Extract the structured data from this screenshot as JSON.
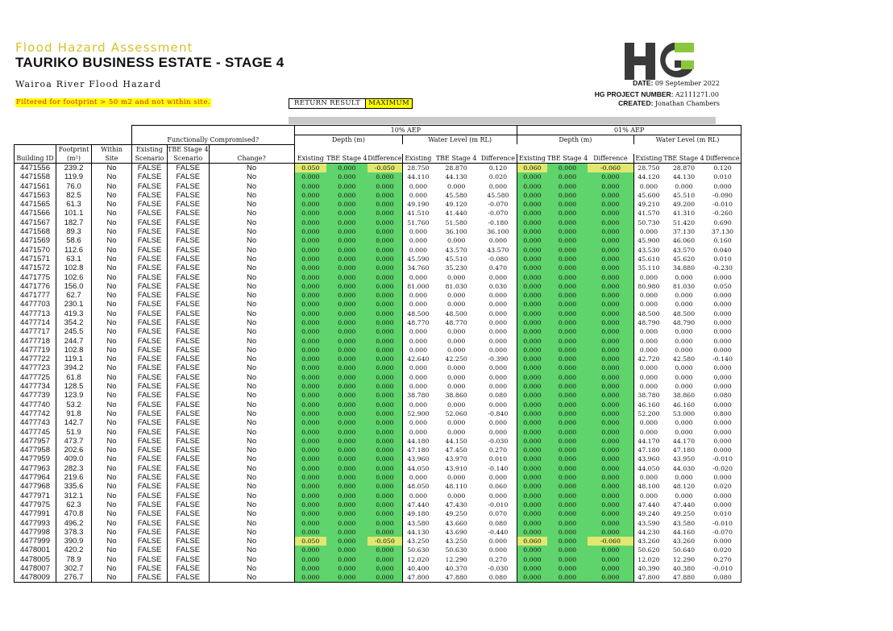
{
  "header": {
    "subtitle": "Flood Hazard Assessment",
    "title": "TAURIKO BUSINESS ESTATE - STAGE 4",
    "area": "Wairoa River Flood Hazard",
    "filter_note": "Filtered for footprint > 50 m2 and not within site.",
    "return_result_label": "RETURN RESULT",
    "return_result_value": "MAXIMUM",
    "date_label": "DATE:",
    "date_value": "09 September 2022",
    "project_label": "HG PROJECT NUMBER:",
    "project_value": "A2111271.00",
    "created_label": "CREATED:",
    "created_value": "Jonathan Chambers",
    "logo_letters": "HG",
    "logo_colors": {
      "dark": "#3a3a3a",
      "accent": "#8cc63f"
    }
  },
  "table": {
    "group_headers": {
      "functionally": "Functionally Compromised?",
      "aep10": "10% AEP",
      "aep01": "01% AEP",
      "depth": "Depth (m)",
      "wl": "Water Level (m RL)"
    },
    "col_headers": {
      "building_id": "Building ID",
      "footprint_1": "Footprint",
      "footprint_2": "(m²)",
      "within_1": "Within",
      "within_2": "Site",
      "existing_1": "Existing",
      "existing_2": "Scenario",
      "tbe_1": "TBE Stage 4",
      "tbe_2": "Scenario",
      "change": "Change?",
      "existing": "Existing",
      "tbe": "TBE Stage 4",
      "difference": "Difference"
    },
    "colors": {
      "green": "#5fd36c",
      "yellow": "#e1e870"
    },
    "rows": [
      [
        "4471556",
        "239.2",
        "No",
        "FALSE",
        "FALSE",
        "No",
        "0.050",
        "0.000",
        "-0.050",
        "28.750",
        "28.870",
        "0.120",
        "0.060",
        "0.000",
        "-0.060",
        "28.750",
        "28.870",
        "0.120"
      ],
      [
        "4471558",
        "119.9",
        "No",
        "FALSE",
        "FALSE",
        "No",
        "0.000",
        "0.000",
        "0.000",
        "44.110",
        "44.130",
        "0.020",
        "0.000",
        "0.000",
        "0.000",
        "44.120",
        "44.130",
        "0.010"
      ],
      [
        "4471561",
        "76.0",
        "No",
        "FALSE",
        "FALSE",
        "No",
        "0.000",
        "0.000",
        "0.000",
        "0.000",
        "0.000",
        "0.000",
        "0.000",
        "0.000",
        "0.000",
        "0.000",
        "0.000",
        "0.000"
      ],
      [
        "4471563",
        "82.5",
        "No",
        "FALSE",
        "FALSE",
        "No",
        "0.000",
        "0.000",
        "0.000",
        "0.000",
        "45.580",
        "45.580",
        "0.000",
        "0.000",
        "0.000",
        "45.600",
        "45.510",
        "-0.090"
      ],
      [
        "4471565",
        "61.3",
        "No",
        "FALSE",
        "FALSE",
        "No",
        "0.000",
        "0.000",
        "0.000",
        "49.190",
        "49.120",
        "-0.070",
        "0.000",
        "0.000",
        "0.000",
        "49.210",
        "49.200",
        "-0.010"
      ],
      [
        "4471566",
        "101.1",
        "No",
        "FALSE",
        "FALSE",
        "No",
        "0.000",
        "0.000",
        "0.000",
        "41.510",
        "41.440",
        "-0.070",
        "0.000",
        "0.000",
        "0.000",
        "41.570",
        "41.310",
        "-0.260"
      ],
      [
        "4471567",
        "182.7",
        "No",
        "FALSE",
        "FALSE",
        "No",
        "0.000",
        "0.000",
        "0.000",
        "51.760",
        "51.580",
        "-0.180",
        "0.000",
        "0.000",
        "0.000",
        "50.730",
        "51.420",
        "0.690"
      ],
      [
        "4471568",
        "89.3",
        "No",
        "FALSE",
        "FALSE",
        "No",
        "0.000",
        "0.000",
        "0.000",
        "0.000",
        "36.100",
        "36.100",
        "0.000",
        "0.000",
        "0.000",
        "0.000",
        "37.130",
        "37.130"
      ],
      [
        "4471569",
        "58.6",
        "No",
        "FALSE",
        "FALSE",
        "No",
        "0.000",
        "0.000",
        "0.000",
        "0.000",
        "0.000",
        "0.000",
        "0.000",
        "0.000",
        "0.000",
        "45.900",
        "46.060",
        "0.160"
      ],
      [
        "4471570",
        "112.6",
        "No",
        "FALSE",
        "FALSE",
        "No",
        "0.000",
        "0.000",
        "0.000",
        "0.000",
        "43.570",
        "43.570",
        "0.000",
        "0.000",
        "0.000",
        "43.530",
        "43.570",
        "0.040"
      ],
      [
        "4471571",
        "63.1",
        "No",
        "FALSE",
        "FALSE",
        "No",
        "0.000",
        "0.000",
        "0.000",
        "45.590",
        "45.510",
        "-0.080",
        "0.000",
        "0.000",
        "0.000",
        "45.610",
        "45.620",
        "0.010"
      ],
      [
        "4471572",
        "102.8",
        "No",
        "FALSE",
        "FALSE",
        "No",
        "0.000",
        "0.000",
        "0.000",
        "34.760",
        "35.230",
        "0.470",
        "0.000",
        "0.000",
        "0.000",
        "35.110",
        "34.880",
        "-0.230"
      ],
      [
        "4471775",
        "102.6",
        "No",
        "FALSE",
        "FALSE",
        "No",
        "0.000",
        "0.000",
        "0.000",
        "0.000",
        "0.000",
        "0.000",
        "0.000",
        "0.000",
        "0.000",
        "0.000",
        "0.000",
        "0.000"
      ],
      [
        "4471776",
        "156.0",
        "No",
        "FALSE",
        "FALSE",
        "No",
        "0.000",
        "0.000",
        "0.000",
        "81.000",
        "81.030",
        "0.030",
        "0.000",
        "0.000",
        "0.000",
        "80.980",
        "81.030",
        "0.050"
      ],
      [
        "4471777",
        "62.7",
        "No",
        "FALSE",
        "FALSE",
        "No",
        "0.000",
        "0.000",
        "0.000",
        "0.000",
        "0.000",
        "0.000",
        "0.000",
        "0.000",
        "0.000",
        "0.000",
        "0.000",
        "0.000"
      ],
      [
        "4477703",
        "230.1",
        "No",
        "FALSE",
        "FALSE",
        "No",
        "0.000",
        "0.000",
        "0.000",
        "0.000",
        "0.000",
        "0.000",
        "0.000",
        "0.000",
        "0.000",
        "0.000",
        "0.000",
        "0.000"
      ],
      [
        "4477713",
        "419.3",
        "No",
        "FALSE",
        "FALSE",
        "No",
        "0.000",
        "0.000",
        "0.000",
        "48.500",
        "48.500",
        "0.000",
        "0.000",
        "0.000",
        "0.000",
        "48.500",
        "48.500",
        "0.000"
      ],
      [
        "4477714",
        "354.2",
        "No",
        "FALSE",
        "FALSE",
        "No",
        "0.000",
        "0.000",
        "0.000",
        "48.770",
        "48.770",
        "0.000",
        "0.000",
        "0.000",
        "0.000",
        "48.790",
        "48.790",
        "0.000"
      ],
      [
        "4477717",
        "245.5",
        "No",
        "FALSE",
        "FALSE",
        "No",
        "0.000",
        "0.000",
        "0.000",
        "0.000",
        "0.000",
        "0.000",
        "0.000",
        "0.000",
        "0.000",
        "0.000",
        "0.000",
        "0.000"
      ],
      [
        "4477718",
        "244.7",
        "No",
        "FALSE",
        "FALSE",
        "No",
        "0.000",
        "0.000",
        "0.000",
        "0.000",
        "0.000",
        "0.000",
        "0.000",
        "0.000",
        "0.000",
        "0.000",
        "0.000",
        "0.000"
      ],
      [
        "4477719",
        "102.8",
        "No",
        "FALSE",
        "FALSE",
        "No",
        "0.000",
        "0.000",
        "0.000",
        "0.000",
        "0.000",
        "0.000",
        "0.000",
        "0.000",
        "0.000",
        "0.000",
        "0.000",
        "0.000"
      ],
      [
        "4477722",
        "119.1",
        "No",
        "FALSE",
        "FALSE",
        "No",
        "0.000",
        "0.000",
        "0.000",
        "42.640",
        "42.250",
        "-0.390",
        "0.000",
        "0.000",
        "0.000",
        "42.720",
        "42.580",
        "-0.140"
      ],
      [
        "4477723",
        "394.2",
        "No",
        "FALSE",
        "FALSE",
        "No",
        "0.000",
        "0.000",
        "0.000",
        "0.000",
        "0.000",
        "0.000",
        "0.000",
        "0.000",
        "0.000",
        "0.000",
        "0.000",
        "0.000"
      ],
      [
        "4477725",
        "61.8",
        "No",
        "FALSE",
        "FALSE",
        "No",
        "0.000",
        "0.000",
        "0.000",
        "0.000",
        "0.000",
        "0.000",
        "0.000",
        "0.000",
        "0.000",
        "0.000",
        "0.000",
        "0.000"
      ],
      [
        "4477734",
        "128.5",
        "No",
        "FALSE",
        "FALSE",
        "No",
        "0.000",
        "0.000",
        "0.000",
        "0.000",
        "0.000",
        "0.000",
        "0.000",
        "0.000",
        "0.000",
        "0.000",
        "0.000",
        "0.000"
      ],
      [
        "4477739",
        "123.9",
        "No",
        "FALSE",
        "FALSE",
        "No",
        "0.000",
        "0.000",
        "0.000",
        "38.780",
        "38.860",
        "0.080",
        "0.000",
        "0.000",
        "0.000",
        "38.780",
        "38.860",
        "0.080"
      ],
      [
        "4477740",
        "53.2",
        "No",
        "FALSE",
        "FALSE",
        "No",
        "0.000",
        "0.000",
        "0.000",
        "0.000",
        "0.000",
        "0.000",
        "0.000",
        "0.000",
        "0.000",
        "46.160",
        "46.160",
        "0.000"
      ],
      [
        "4477742",
        "91.8",
        "No",
        "FALSE",
        "FALSE",
        "No",
        "0.000",
        "0.000",
        "0.000",
        "52.900",
        "52.060",
        "-0.840",
        "0.000",
        "0.000",
        "0.000",
        "52.200",
        "53.000",
        "0.800"
      ],
      [
        "4477743",
        "142.7",
        "No",
        "FALSE",
        "FALSE",
        "No",
        "0.000",
        "0.000",
        "0.000",
        "0.000",
        "0.000",
        "0.000",
        "0.000",
        "0.000",
        "0.000",
        "0.000",
        "0.000",
        "0.000"
      ],
      [
        "4477745",
        "51.9",
        "No",
        "FALSE",
        "FALSE",
        "No",
        "0.000",
        "0.000",
        "0.000",
        "0.000",
        "0.000",
        "0.000",
        "0.000",
        "0.000",
        "0.000",
        "0.000",
        "0.000",
        "0.000"
      ],
      [
        "4477957",
        "473.7",
        "No",
        "FALSE",
        "FALSE",
        "No",
        "0.000",
        "0.000",
        "0.000",
        "44.180",
        "44.150",
        "-0.030",
        "0.000",
        "0.000",
        "0.000",
        "44.170",
        "44.170",
        "0.000"
      ],
      [
        "4477958",
        "202.6",
        "No",
        "FALSE",
        "FALSE",
        "No",
        "0.000",
        "0.000",
        "0.000",
        "47.180",
        "47.450",
        "0.270",
        "0.000",
        "0.000",
        "0.000",
        "47.180",
        "47.180",
        "0.000"
      ],
      [
        "4477959",
        "409.0",
        "No",
        "FALSE",
        "FALSE",
        "No",
        "0.000",
        "0.000",
        "0.000",
        "43.960",
        "43.970",
        "0.010",
        "0.000",
        "0.000",
        "0.000",
        "43.960",
        "43.950",
        "-0.010"
      ],
      [
        "4477963",
        "282.3",
        "No",
        "FALSE",
        "FALSE",
        "No",
        "0.000",
        "0.000",
        "0.000",
        "44.050",
        "43.910",
        "-0.140",
        "0.000",
        "0.000",
        "0.000",
        "44.050",
        "44.030",
        "-0.020"
      ],
      [
        "4477964",
        "219.6",
        "No",
        "FALSE",
        "FALSE",
        "No",
        "0.000",
        "0.000",
        "0.000",
        "0.000",
        "0.000",
        "0.000",
        "0.000",
        "0.000",
        "0.000",
        "0.000",
        "0.000",
        "0.000"
      ],
      [
        "4477968",
        "335.6",
        "No",
        "FALSE",
        "FALSE",
        "No",
        "0.000",
        "0.000",
        "0.000",
        "48.050",
        "48.110",
        "0.060",
        "0.000",
        "0.000",
        "0.000",
        "48.100",
        "48.120",
        "0.020"
      ],
      [
        "4477971",
        "312.1",
        "No",
        "FALSE",
        "FALSE",
        "No",
        "0.000",
        "0.000",
        "0.000",
        "0.000",
        "0.000",
        "0.000",
        "0.000",
        "0.000",
        "0.000",
        "0.000",
        "0.000",
        "0.000"
      ],
      [
        "4477975",
        "62.3",
        "No",
        "FALSE",
        "FALSE",
        "No",
        "0.000",
        "0.000",
        "0.000",
        "47.440",
        "47.430",
        "-0.010",
        "0.000",
        "0.000",
        "0.000",
        "47.440",
        "47.440",
        "0.000"
      ],
      [
        "4477991",
        "470.8",
        "No",
        "FALSE",
        "FALSE",
        "No",
        "0.000",
        "0.000",
        "0.000",
        "49.180",
        "49.250",
        "0.070",
        "0.000",
        "0.000",
        "0.000",
        "49.240",
        "49.250",
        "0.010"
      ],
      [
        "4477993",
        "496.2",
        "No",
        "FALSE",
        "FALSE",
        "No",
        "0.000",
        "0.000",
        "0.000",
        "43.580",
        "43.660",
        "0.080",
        "0.000",
        "0.000",
        "0.000",
        "43.590",
        "43.580",
        "-0.010"
      ],
      [
        "4477998",
        "378.3",
        "No",
        "FALSE",
        "FALSE",
        "No",
        "0.000",
        "0.000",
        "0.000",
        "44.130",
        "43.690",
        "-0.440",
        "0.000",
        "0.000",
        "0.000",
        "44.230",
        "44.160",
        "-0.070"
      ],
      [
        "4477999",
        "390.9",
        "No",
        "FALSE",
        "FALSE",
        "No",
        "0.050",
        "0.000",
        "-0.050",
        "43.250",
        "43.250",
        "0.000",
        "0.060",
        "0.000",
        "-0.060",
        "43.260",
        "43.260",
        "0.000"
      ],
      [
        "4478001",
        "420.2",
        "No",
        "FALSE",
        "FALSE",
        "No",
        "0.000",
        "0.000",
        "0.000",
        "50.630",
        "50.630",
        "0.000",
        "0.000",
        "0.000",
        "0.000",
        "50.620",
        "50.640",
        "0.020"
      ],
      [
        "4478005",
        "78.9",
        "No",
        "FALSE",
        "FALSE",
        "No",
        "0.000",
        "0.000",
        "0.000",
        "12.020",
        "12.290",
        "0.270",
        "0.000",
        "0.000",
        "0.000",
        "12.020",
        "12.290",
        "0.270"
      ],
      [
        "4478007",
        "302.7",
        "No",
        "FALSE",
        "FALSE",
        "No",
        "0.000",
        "0.000",
        "0.000",
        "40.400",
        "40.370",
        "-0.030",
        "0.000",
        "0.000",
        "0.000",
        "40.390",
        "40.380",
        "-0.010"
      ],
      [
        "4478009",
        "276.7",
        "No",
        "FALSE",
        "FALSE",
        "No",
        "0.000",
        "0.000",
        "0.000",
        "47.800",
        "47.880",
        "0.080",
        "0.000",
        "0.000",
        "0.000",
        "47.800",
        "47.880",
        "0.080"
      ]
    ]
  }
}
